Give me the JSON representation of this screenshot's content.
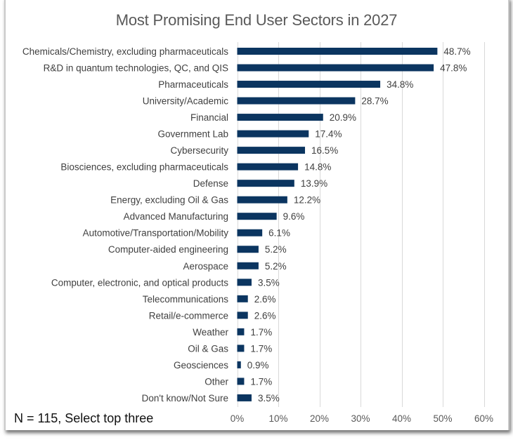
{
  "chart_data": {
    "type": "bar",
    "orientation": "horizontal",
    "title": "Most Promising End User Sectors in 2027",
    "categories": [
      "Chemicals/Chemistry, excluding pharmaceuticals",
      "R&D in quantum technologies, QC, and QIS",
      "Pharmaceuticals",
      "University/Academic",
      "Financial",
      "Government Lab",
      "Cybersecurity",
      "Biosciences, excluding pharmaceuticals",
      "Defense",
      "Energy, excluding Oil & Gas",
      "Advanced Manufacturing",
      "Automotive/Transportation/Mobility",
      "Computer-aided engineering",
      "Aerospace",
      "Computer, electronic, and optical products",
      "Telecommunications",
      "Retail/e-commerce",
      "Weather",
      "Oil & Gas",
      "Geosciences",
      "Other",
      "Don't know/Not Sure"
    ],
    "values": [
      48.7,
      47.8,
      34.8,
      28.7,
      20.9,
      17.4,
      16.5,
      14.8,
      13.9,
      12.2,
      9.6,
      6.1,
      5.2,
      5.2,
      3.5,
      2.6,
      2.6,
      1.7,
      1.7,
      0.9,
      1.7,
      3.5
    ],
    "value_labels": [
      "48.7%",
      "47.8%",
      "34.8%",
      "28.7%",
      "20.9%",
      "17.4%",
      "16.5%",
      "14.8%",
      "13.9%",
      "12.2%",
      "9.6%",
      "6.1%",
      "5.2%",
      "5.2%",
      "3.5%",
      "2.6%",
      "2.6%",
      "1.7%",
      "1.7%",
      "0.9%",
      "1.7%",
      "3.5%"
    ],
    "xlabel": "",
    "ylabel": "",
    "xlim": [
      0,
      60
    ],
    "x_ticks": [
      0,
      10,
      20,
      30,
      40,
      50,
      60
    ],
    "x_tick_labels": [
      "0%",
      "10%",
      "20%",
      "30%",
      "40%",
      "50%",
      "60%"
    ],
    "grid": "vertical",
    "legend": "none",
    "bar_color": "#0b3560",
    "annotation": "N = 115, Select top three"
  }
}
